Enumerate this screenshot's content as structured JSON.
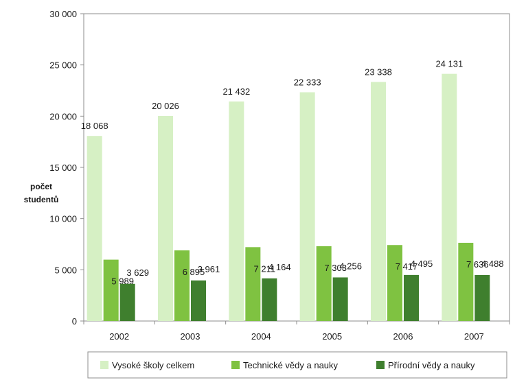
{
  "chart_data": {
    "type": "bar",
    "title": "",
    "xlabel": "",
    "ylabel": [
      "počet",
      "studentů"
    ],
    "ylim": [
      0,
      30000
    ],
    "yticks": [
      0,
      5000,
      10000,
      15000,
      20000,
      25000,
      30000
    ],
    "ytick_labels": [
      "0",
      "5 000",
      "10 000",
      "15 000",
      "20 000",
      "25 000",
      "30 000"
    ],
    "grid": false,
    "legend_position": "bottom",
    "categories": [
      "2002",
      "2003",
      "2004",
      "2005",
      "2006",
      "2007"
    ],
    "series": [
      {
        "name": "Vysoké školy celkem",
        "color": "#d6f0c4",
        "values": [
          18068,
          20026,
          21432,
          22333,
          23338,
          24131
        ],
        "labels": [
          "18 068",
          "20 026",
          "21 432",
          "22 333",
          "23 338",
          "24 131"
        ]
      },
      {
        "name": "Technické vědy a nauky",
        "color": "#7fc241",
        "values": [
          5989,
          6895,
          7211,
          7303,
          7417,
          7636
        ],
        "labels": [
          "5 989",
          "6 895",
          "7 211",
          "7 303",
          "7 417",
          "7 636"
        ]
      },
      {
        "name": "Přírodní vědy a nauky",
        "color": "#3f7f2e",
        "values": [
          3629,
          3961,
          4164,
          4256,
          4495,
          4488
        ],
        "labels": [
          "3 629",
          "3 961",
          "4 164",
          "4 256",
          "4 495",
          "4 488"
        ]
      }
    ]
  }
}
